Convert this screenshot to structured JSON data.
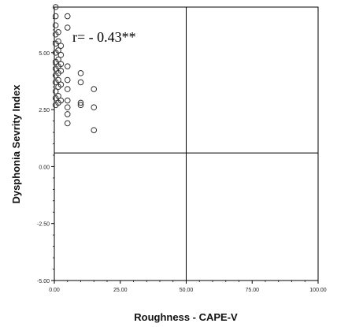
{
  "chart_data": {
    "type": "scatter",
    "title": "",
    "xlabel": "Roughness - CAPE-V",
    "ylabel": "Dysphonia Sevrity Index",
    "xlim": [
      0,
      100
    ],
    "ylim": [
      -5,
      7
    ],
    "x_ticks": [
      0,
      25,
      50,
      75,
      100
    ],
    "x_tick_labels": [
      "0.00",
      "25.00",
      "50.00",
      "75.00",
      "100.00"
    ],
    "y_ticks": [
      -5,
      -2.5,
      0,
      2.5,
      5
    ],
    "y_tick_labels": [
      "-5.00",
      "-2.50",
      "0.00",
      "2.50",
      "5.00"
    ],
    "reference_lines": {
      "x": 50,
      "y": 0.6
    },
    "annotation": "r= - 0.43**",
    "grid": false,
    "legend": "none",
    "marker": "open-circle",
    "points": [
      {
        "x": 0.5,
        "y": 7.0
      },
      {
        "x": 0.5,
        "y": 6.6
      },
      {
        "x": 0.5,
        "y": 6.2
      },
      {
        "x": 0.5,
        "y": 5.8
      },
      {
        "x": 0.5,
        "y": 5.4
      },
      {
        "x": 0.5,
        "y": 5.0
      },
      {
        "x": 0.5,
        "y": 4.6
      },
      {
        "x": 0.5,
        "y": 4.3
      },
      {
        "x": 0.5,
        "y": 4.0
      },
      {
        "x": 0.5,
        "y": 3.7
      },
      {
        "x": 0.5,
        "y": 3.3
      },
      {
        "x": 0.5,
        "y": 3.0
      },
      {
        "x": 0.5,
        "y": 2.7
      },
      {
        "x": 1.5,
        "y": 5.9
      },
      {
        "x": 1.5,
        "y": 5.5
      },
      {
        "x": 1.5,
        "y": 5.1
      },
      {
        "x": 1.5,
        "y": 4.7
      },
      {
        "x": 1.5,
        "y": 4.4
      },
      {
        "x": 1.5,
        "y": 4.1
      },
      {
        "x": 1.5,
        "y": 3.8
      },
      {
        "x": 1.5,
        "y": 3.5
      },
      {
        "x": 1.5,
        "y": 3.1
      },
      {
        "x": 1.5,
        "y": 2.8
      },
      {
        "x": 2.5,
        "y": 5.3
      },
      {
        "x": 2.5,
        "y": 4.9
      },
      {
        "x": 2.5,
        "y": 4.5
      },
      {
        "x": 2.5,
        "y": 4.2
      },
      {
        "x": 2.5,
        "y": 3.6
      },
      {
        "x": 2.5,
        "y": 2.9
      },
      {
        "x": 5,
        "y": 6.6
      },
      {
        "x": 5,
        "y": 6.1
      },
      {
        "x": 5,
        "y": 4.4
      },
      {
        "x": 5,
        "y": 3.8
      },
      {
        "x": 5,
        "y": 3.4
      },
      {
        "x": 5,
        "y": 2.9
      },
      {
        "x": 5,
        "y": 2.6
      },
      {
        "x": 5,
        "y": 2.3
      },
      {
        "x": 5,
        "y": 1.9
      },
      {
        "x": 10,
        "y": 4.1
      },
      {
        "x": 10,
        "y": 3.7
      },
      {
        "x": 10,
        "y": 2.8
      },
      {
        "x": 10,
        "y": 2.7
      },
      {
        "x": 15,
        "y": 3.4
      },
      {
        "x": 15,
        "y": 2.6
      },
      {
        "x": 15,
        "y": 1.6
      }
    ]
  }
}
